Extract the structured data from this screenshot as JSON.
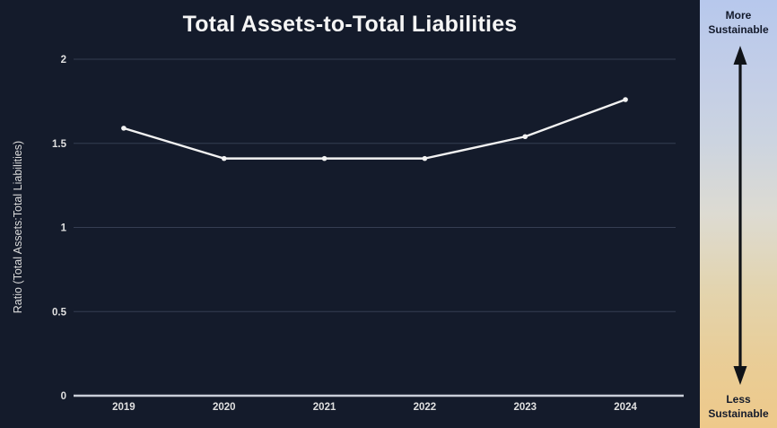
{
  "title": "Total Assets-to-Total Liabilities",
  "chart_data": {
    "type": "line",
    "title": "Total Assets-to-Total Liabilities",
    "categories": [
      "2019",
      "2020",
      "2021",
      "2022",
      "2023",
      "2024"
    ],
    "series": [
      {
        "name": "Ratio (Total Assets:Total Liabilities)",
        "values": [
          1.59,
          1.41,
          1.41,
          1.41,
          1.54,
          1.76
        ]
      }
    ],
    "xlabel": "",
    "ylabel": "Ratio (Total Assets:Total Liabilities)",
    "ylim": [
      0,
      2
    ],
    "yticks": [
      0,
      0.5,
      1,
      1.5,
      2
    ],
    "grid": true,
    "legend": false,
    "colors": {
      "background": "#141b2b",
      "line": "#f2f2f2",
      "gridline": "#353e52",
      "baseline": "#c9ced8",
      "tick_text": "#e0e0e0"
    }
  },
  "sidebar": {
    "top_label": "More Sustainable",
    "bottom_label": "Less Sustainable",
    "arrow_icon": "double-headed-vertical-arrow",
    "colors": {
      "gradient_top": "#b7c8ec",
      "gradient_bottom": "#eec98a",
      "arrow": "#101318",
      "text": "#131a2b"
    }
  }
}
